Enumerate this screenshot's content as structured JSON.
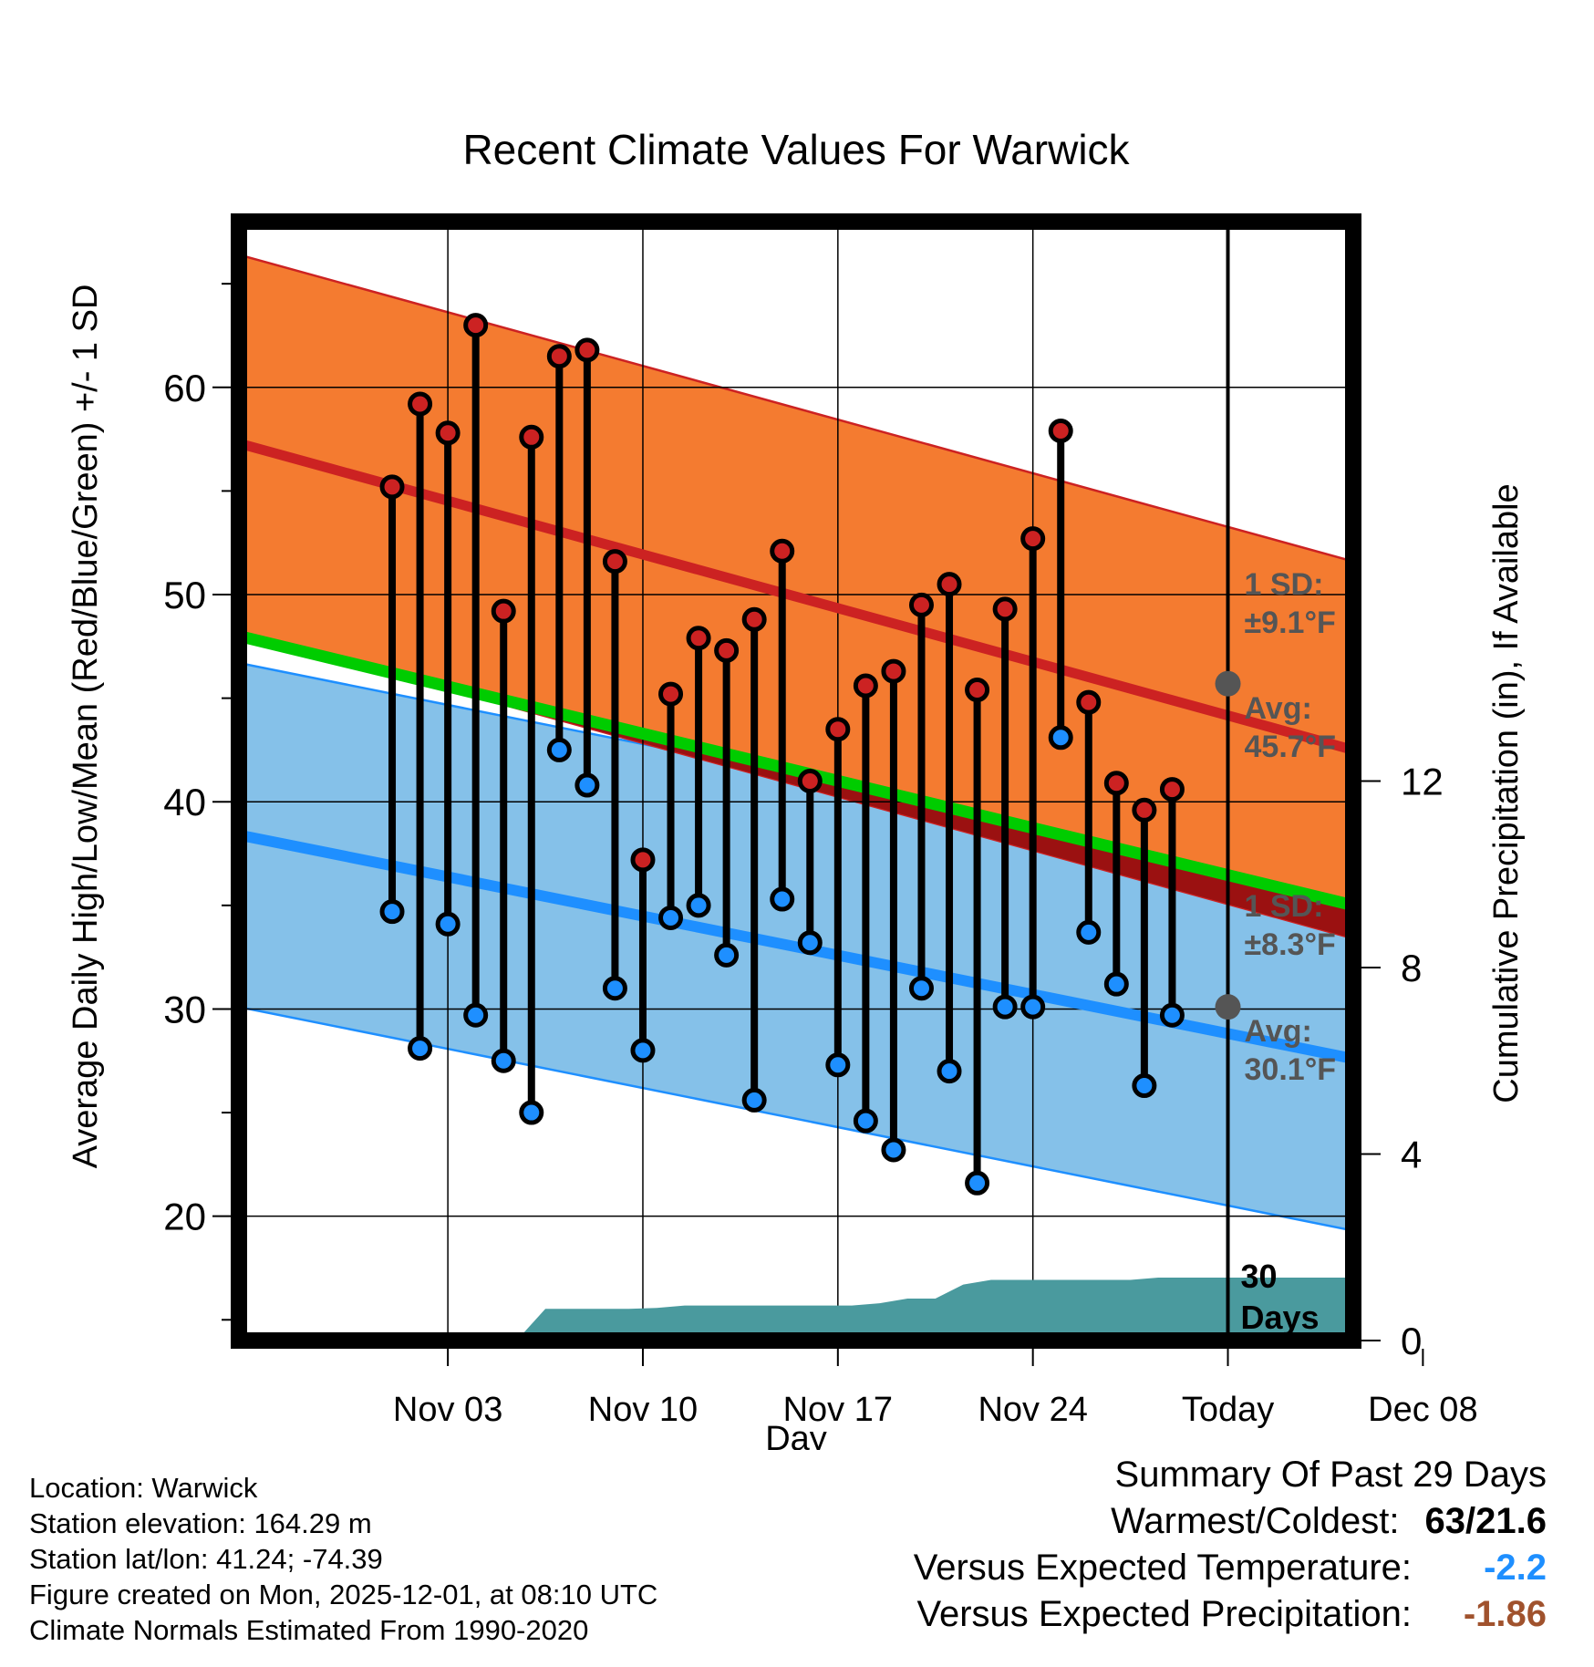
{
  "chart_data": {
    "type": "line",
    "title": "Recent Climate Values For Warwick",
    "xlabel": "Day",
    "ylabel": "Average Daily High/Low/Mean (Red/Blue/Green) +/- 1 SD",
    "y2label": "Cumulative Precipitation (in), If Available",
    "x_range_days": [
      -4.5,
      35.5
    ],
    "ylim": [
      14,
      68
    ],
    "y2lim": [
      0,
      24
    ],
    "y_ticks": [
      20,
      30,
      40,
      50,
      60
    ],
    "y2_ticks": [
      0,
      4,
      8,
      12
    ],
    "x_ticks": [
      {
        "day": 3,
        "label": "Nov 03"
      },
      {
        "day": 10,
        "label": "Nov 10"
      },
      {
        "day": 17,
        "label": "Nov 17"
      },
      {
        "day": 24,
        "label": "Nov 24"
      },
      {
        "day": 31,
        "label": "Today"
      },
      {
        "day": 38,
        "label": "Dec 08"
      }
    ],
    "grid": true,
    "today_day": 31,
    "normals": {
      "high_avg": [
        57.3,
        42.5
      ],
      "high_sd": 9.1,
      "low_avg": [
        38.4,
        27.6
      ],
      "low_sd": 8.3,
      "mean_avg": [
        48.0,
        35.0
      ]
    },
    "annotations": {
      "high_sd_label": [
        "1 SD:",
        "±9.1°F"
      ],
      "high_avg_label": [
        "Avg:",
        "45.7°F"
      ],
      "low_sd_label": [
        "1 SD:",
        "±8.3°F"
      ],
      "low_avg_label": [
        "Avg:",
        "30.1°F"
      ],
      "high_avg_today": 45.7,
      "low_avg_today": 30.1,
      "precip_label": [
        "30",
        "Days"
      ]
    },
    "series": [
      {
        "name": "Daily High",
        "color": "#cc2222",
        "values": [
          55.2,
          59.2,
          57.8,
          63.0,
          49.2,
          57.6,
          61.5,
          61.8,
          51.6,
          37.2,
          45.2,
          47.9,
          47.3,
          48.8,
          52.1,
          41.0,
          43.5,
          45.6,
          46.3,
          49.5,
          50.5,
          45.4,
          49.3,
          52.7,
          57.9,
          44.8,
          40.9,
          39.6,
          40.6
        ]
      },
      {
        "name": "Daily Low",
        "color": "#1e8fff",
        "values": [
          34.7,
          28.1,
          34.1,
          29.7,
          27.5,
          25.0,
          42.5,
          40.8,
          31.0,
          28.0,
          34.4,
          35.0,
          32.6,
          25.6,
          35.3,
          33.2,
          27.3,
          24.6,
          23.2,
          31.0,
          27.0,
          21.6,
          30.1,
          30.1,
          43.1,
          33.7,
          31.2,
          26.3,
          29.7
        ]
      },
      {
        "name": "Cumulative Precipitation",
        "days": [
          -4.5,
          5.5,
          5.5,
          6.5,
          7.5,
          9.5,
          10.5,
          11.5,
          12.5,
          17.5,
          18.5,
          19.5,
          20.5,
          21.5,
          22.5,
          23.5,
          24.5,
          25.5,
          26.5,
          27.5,
          28.5,
          29.5,
          30.5,
          35.5
        ],
        "values": [
          0,
          0,
          0.02,
          0.68,
          0.68,
          0.68,
          0.7,
          0.75,
          0.75,
          0.75,
          0.8,
          0.9,
          0.9,
          1.2,
          1.3,
          1.3,
          1.3,
          1.3,
          1.3,
          1.3,
          1.35,
          1.35,
          1.35,
          1.35
        ]
      }
    ],
    "colors": {
      "high_band": "#f47b30",
      "high_line": "#cc2222",
      "low_band": "#85c1e9",
      "low_line": "#1e8fff",
      "mean_line": "#00cc00",
      "precip_fill": "#4a9a9e",
      "label_gray": "#555555"
    }
  },
  "info": {
    "location": "Location: Warwick",
    "elevation": "Station elevation: 164.29 m",
    "latlon": "Station lat/lon: 41.24; -74.39",
    "created": "Figure created on Mon, 2025-12-01, at 08:10 UTC",
    "normals": "Climate Normals Estimated From 1990-2020"
  },
  "summary": {
    "heading": "Summary Of Past 29 Days",
    "warm_cold_label": "Warmest/Coldest:",
    "warm_cold_value": "63/21.6",
    "temp_label": "Versus Expected Temperature:",
    "temp_value": "-2.2",
    "temp_color": "#1e8fff",
    "precip_label": "Versus Expected Precipitation:",
    "precip_value": "-1.86",
    "precip_color": "#a0522d"
  }
}
